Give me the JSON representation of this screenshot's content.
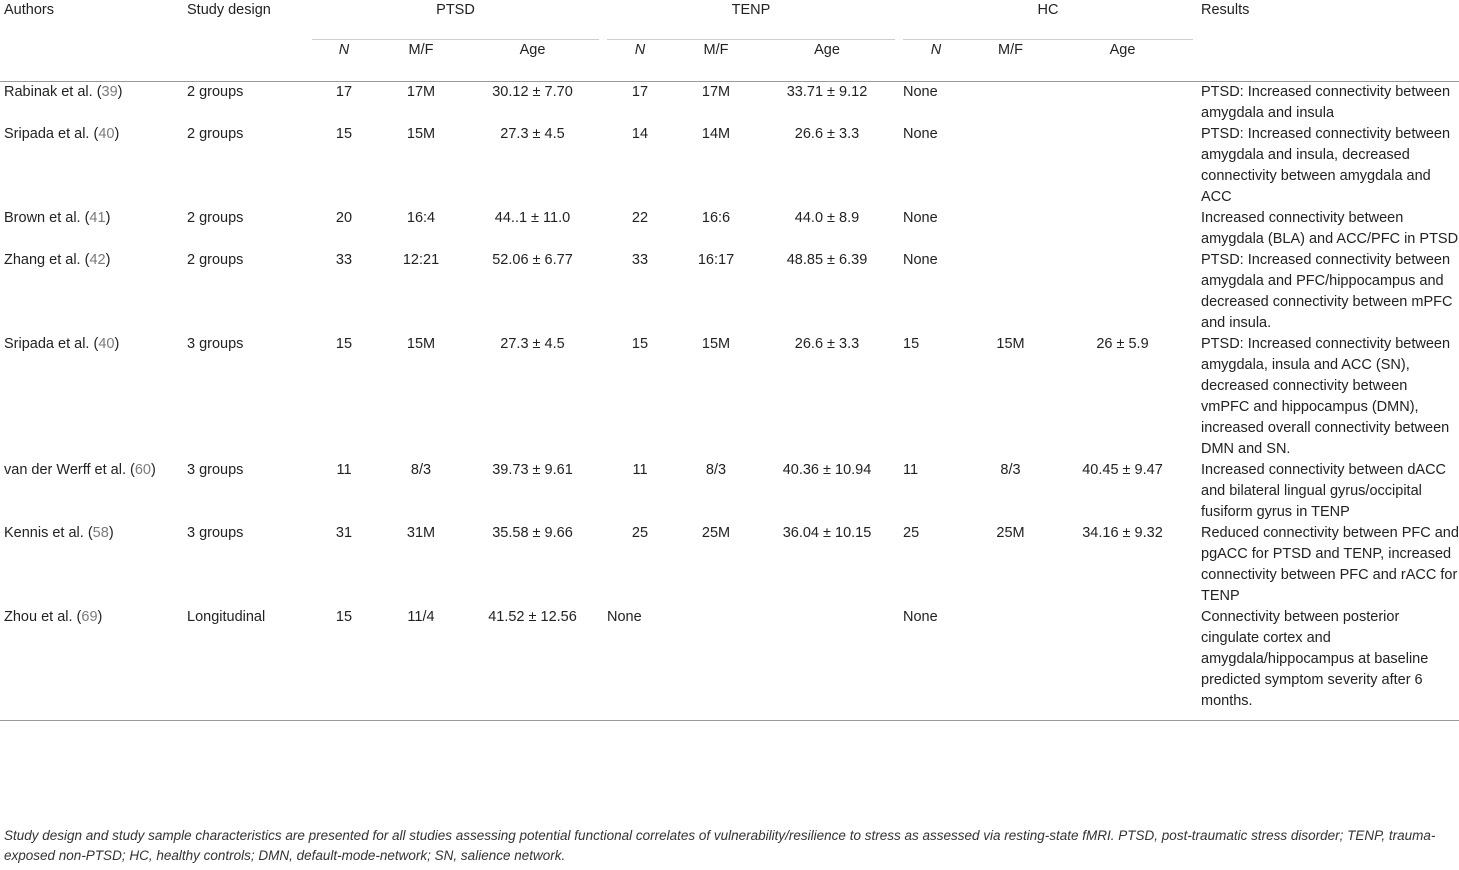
{
  "headers": {
    "authors": "Authors",
    "study_design": "Study design",
    "groups": [
      "PTSD",
      "TENP",
      "HC"
    ],
    "sub": {
      "n": "N",
      "mf": "M/F",
      "age": "Age"
    },
    "results": "Results"
  },
  "rows": [
    {
      "author": "Rabinak et al. (",
      "ref": "39",
      "close": ")",
      "design": "2 groups",
      "ptsd_n": "17",
      "ptsd_mf": "17M",
      "ptsd_age": "30.12 ± 7.70",
      "tenp_n": "17",
      "tenp_mf": "17M",
      "tenp_age": "33.71 ± 9.12",
      "hc_n": "None",
      "hc_mf": "",
      "hc_age": "",
      "results": "PTSD: Increased connectivity between amygdala and insula"
    },
    {
      "author": "Sripada et al. (",
      "ref": "40",
      "close": ")",
      "design": "2 groups",
      "ptsd_n": "15",
      "ptsd_mf": "15M",
      "ptsd_age": "27.3 ± 4.5",
      "tenp_n": "14",
      "tenp_mf": "14M",
      "tenp_age": "26.6 ± 3.3",
      "hc_n": "None",
      "hc_mf": "",
      "hc_age": "",
      "results": "PTSD: Increased connectivity between amygdala and insula, decreased connectivity between amygdala and ACC"
    },
    {
      "author": "Brown et al. (",
      "ref": "41",
      "close": ")",
      "design": "2 groups",
      "ptsd_n": "20",
      "ptsd_mf": "16:4",
      "ptsd_age": "44..1 ± 11.0",
      "tenp_n": "22",
      "tenp_mf": "16:6",
      "tenp_age": "44.0 ± 8.9",
      "hc_n": "None",
      "hc_mf": "",
      "hc_age": "",
      "results": "Increased connectivity between amygdala (BLA) and ACC/PFC in PTSD"
    },
    {
      "author": "Zhang et al. (",
      "ref": "42",
      "close": ")",
      "design": "2 groups",
      "ptsd_n": "33",
      "ptsd_mf": "12:21",
      "ptsd_age": "52.06 ± 6.77",
      "tenp_n": "33",
      "tenp_mf": "16:17",
      "tenp_age": "48.85 ± 6.39",
      "hc_n": "None",
      "hc_mf": "",
      "hc_age": "",
      "results": "PTSD: Increased connectivity between amygdala and PFC/hippocampus and decreased connectivity between mPFC and insula."
    },
    {
      "author": "Sripada et al. (",
      "ref": "40",
      "close": ")",
      "design": "3 groups",
      "ptsd_n": "15",
      "ptsd_mf": "15M",
      "ptsd_age": "27.3 ± 4.5",
      "tenp_n": "15",
      "tenp_mf": "15M",
      "tenp_age": "26.6 ± 3.3",
      "hc_n": "15",
      "hc_mf": "15M",
      "hc_age": "26 ± 5.9",
      "results": "PTSD: Increased connectivity between amygdala, insula and ACC (SN), decreased connectivity between vmPFC and hippocampus (DMN), increased overall connectivity between DMN and SN."
    },
    {
      "author": "van der Werff et al. (",
      "ref": "60",
      "close": ")",
      "design": "3 groups",
      "ptsd_n": "11",
      "ptsd_mf": "8/3",
      "ptsd_age": "39.73 ± 9.61",
      "tenp_n": "11",
      "tenp_mf": "8/3",
      "tenp_age": "40.36 ± 10.94",
      "hc_n": "11",
      "hc_mf": "8/3",
      "hc_age": "40.45 ± 9.47",
      "results": "Increased connectivity between dACC and bilateral lingual gyrus/occipital fusiform gyrus in TENP"
    },
    {
      "author": "Kennis et al. (",
      "ref": "58",
      "close": ")",
      "design": "3 groups",
      "ptsd_n": "31",
      "ptsd_mf": "31M",
      "ptsd_age": "35.58 ± 9.66",
      "tenp_n": "25",
      "tenp_mf": "25M",
      "tenp_age": "36.04 ± 10.15",
      "hc_n": "25",
      "hc_mf": "25M",
      "hc_age": "34.16 ± 9.32",
      "results": "Reduced connectivity between PFC and pgACC for PTSD and TENP, increased connectivity between PFC and rACC for TENP"
    },
    {
      "author": "Zhou et al. (",
      "ref": "69",
      "close": ")",
      "design": "Longitudinal",
      "ptsd_n": "15",
      "ptsd_mf": "11/4",
      "ptsd_age": "41.52 ± 12.56",
      "tenp_n": "None",
      "tenp_mf": "",
      "tenp_age": "",
      "hc_n": "None",
      "hc_mf": "",
      "hc_age": "",
      "results": "Connectivity between posterior cingulate cortex and amygdala/hippocampus at baseline predicted symptom severity after 6 months."
    }
  ],
  "footnote": "Study design and study sample characteristics are presented for all studies assessing potential functional correlates of vulnerability/resilience to stress as assessed via resting-state fMRI. PTSD, post-traumatic stress disorder; TENP, trauma-exposed non-PTSD; HC, healthy controls; DMN, default-mode-network; SN, salience network."
}
